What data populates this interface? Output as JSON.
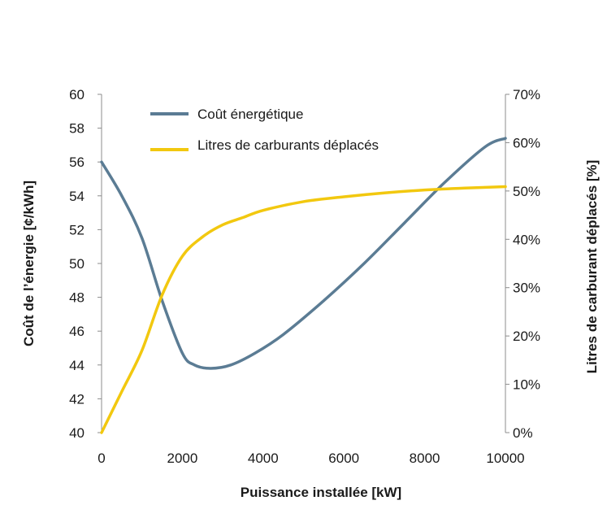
{
  "chart_data": {
    "type": "line",
    "xlabel": "Puissance installée [kW]",
    "ylabel": "Coût de l’énergie [¢/kWh]",
    "y2label": "Litres de carburant déplacés [%]",
    "xlim": [
      0,
      10000
    ],
    "ylim": [
      40,
      60
    ],
    "y2lim": [
      0,
      70
    ],
    "x_ticks": [
      "0",
      "2000",
      "4000",
      "6000",
      "8000",
      "10000"
    ],
    "y_ticks": [
      "40",
      "42",
      "44",
      "46",
      "48",
      "50",
      "52",
      "54",
      "56",
      "58",
      "60"
    ],
    "y2_ticks": [
      "0%",
      "10%",
      "20%",
      "30%",
      "40%",
      "50%",
      "60%",
      "70%"
    ],
    "grid": false,
    "legend_position": "top-left",
    "series": [
      {
        "name": "Coût énergétique",
        "axis": "left",
        "color": "#5B7C94",
        "x": [
          0,
          500,
          1000,
          1500,
          2000,
          2300,
          2700,
          3200,
          3800,
          4500,
          5500,
          6500,
          7500,
          8500,
          9500,
          10000
        ],
        "y": [
          56.0,
          54.0,
          51.5,
          47.8,
          44.7,
          44.0,
          43.8,
          44.0,
          44.7,
          45.8,
          47.8,
          50.0,
          52.4,
          54.8,
          56.9,
          57.4
        ]
      },
      {
        "name": "Litres de carburants déplacés",
        "axis": "right",
        "color": "#F2C80F",
        "x": [
          0,
          500,
          1000,
          1500,
          2000,
          2500,
          3000,
          3500,
          4000,
          5000,
          6000,
          7000,
          8000,
          9000,
          10000
        ],
        "y": [
          0.0,
          8.5,
          17.0,
          28.5,
          36.5,
          40.5,
          43.0,
          44.5,
          46.0,
          47.8,
          48.8,
          49.6,
          50.2,
          50.6,
          50.9
        ]
      }
    ]
  }
}
